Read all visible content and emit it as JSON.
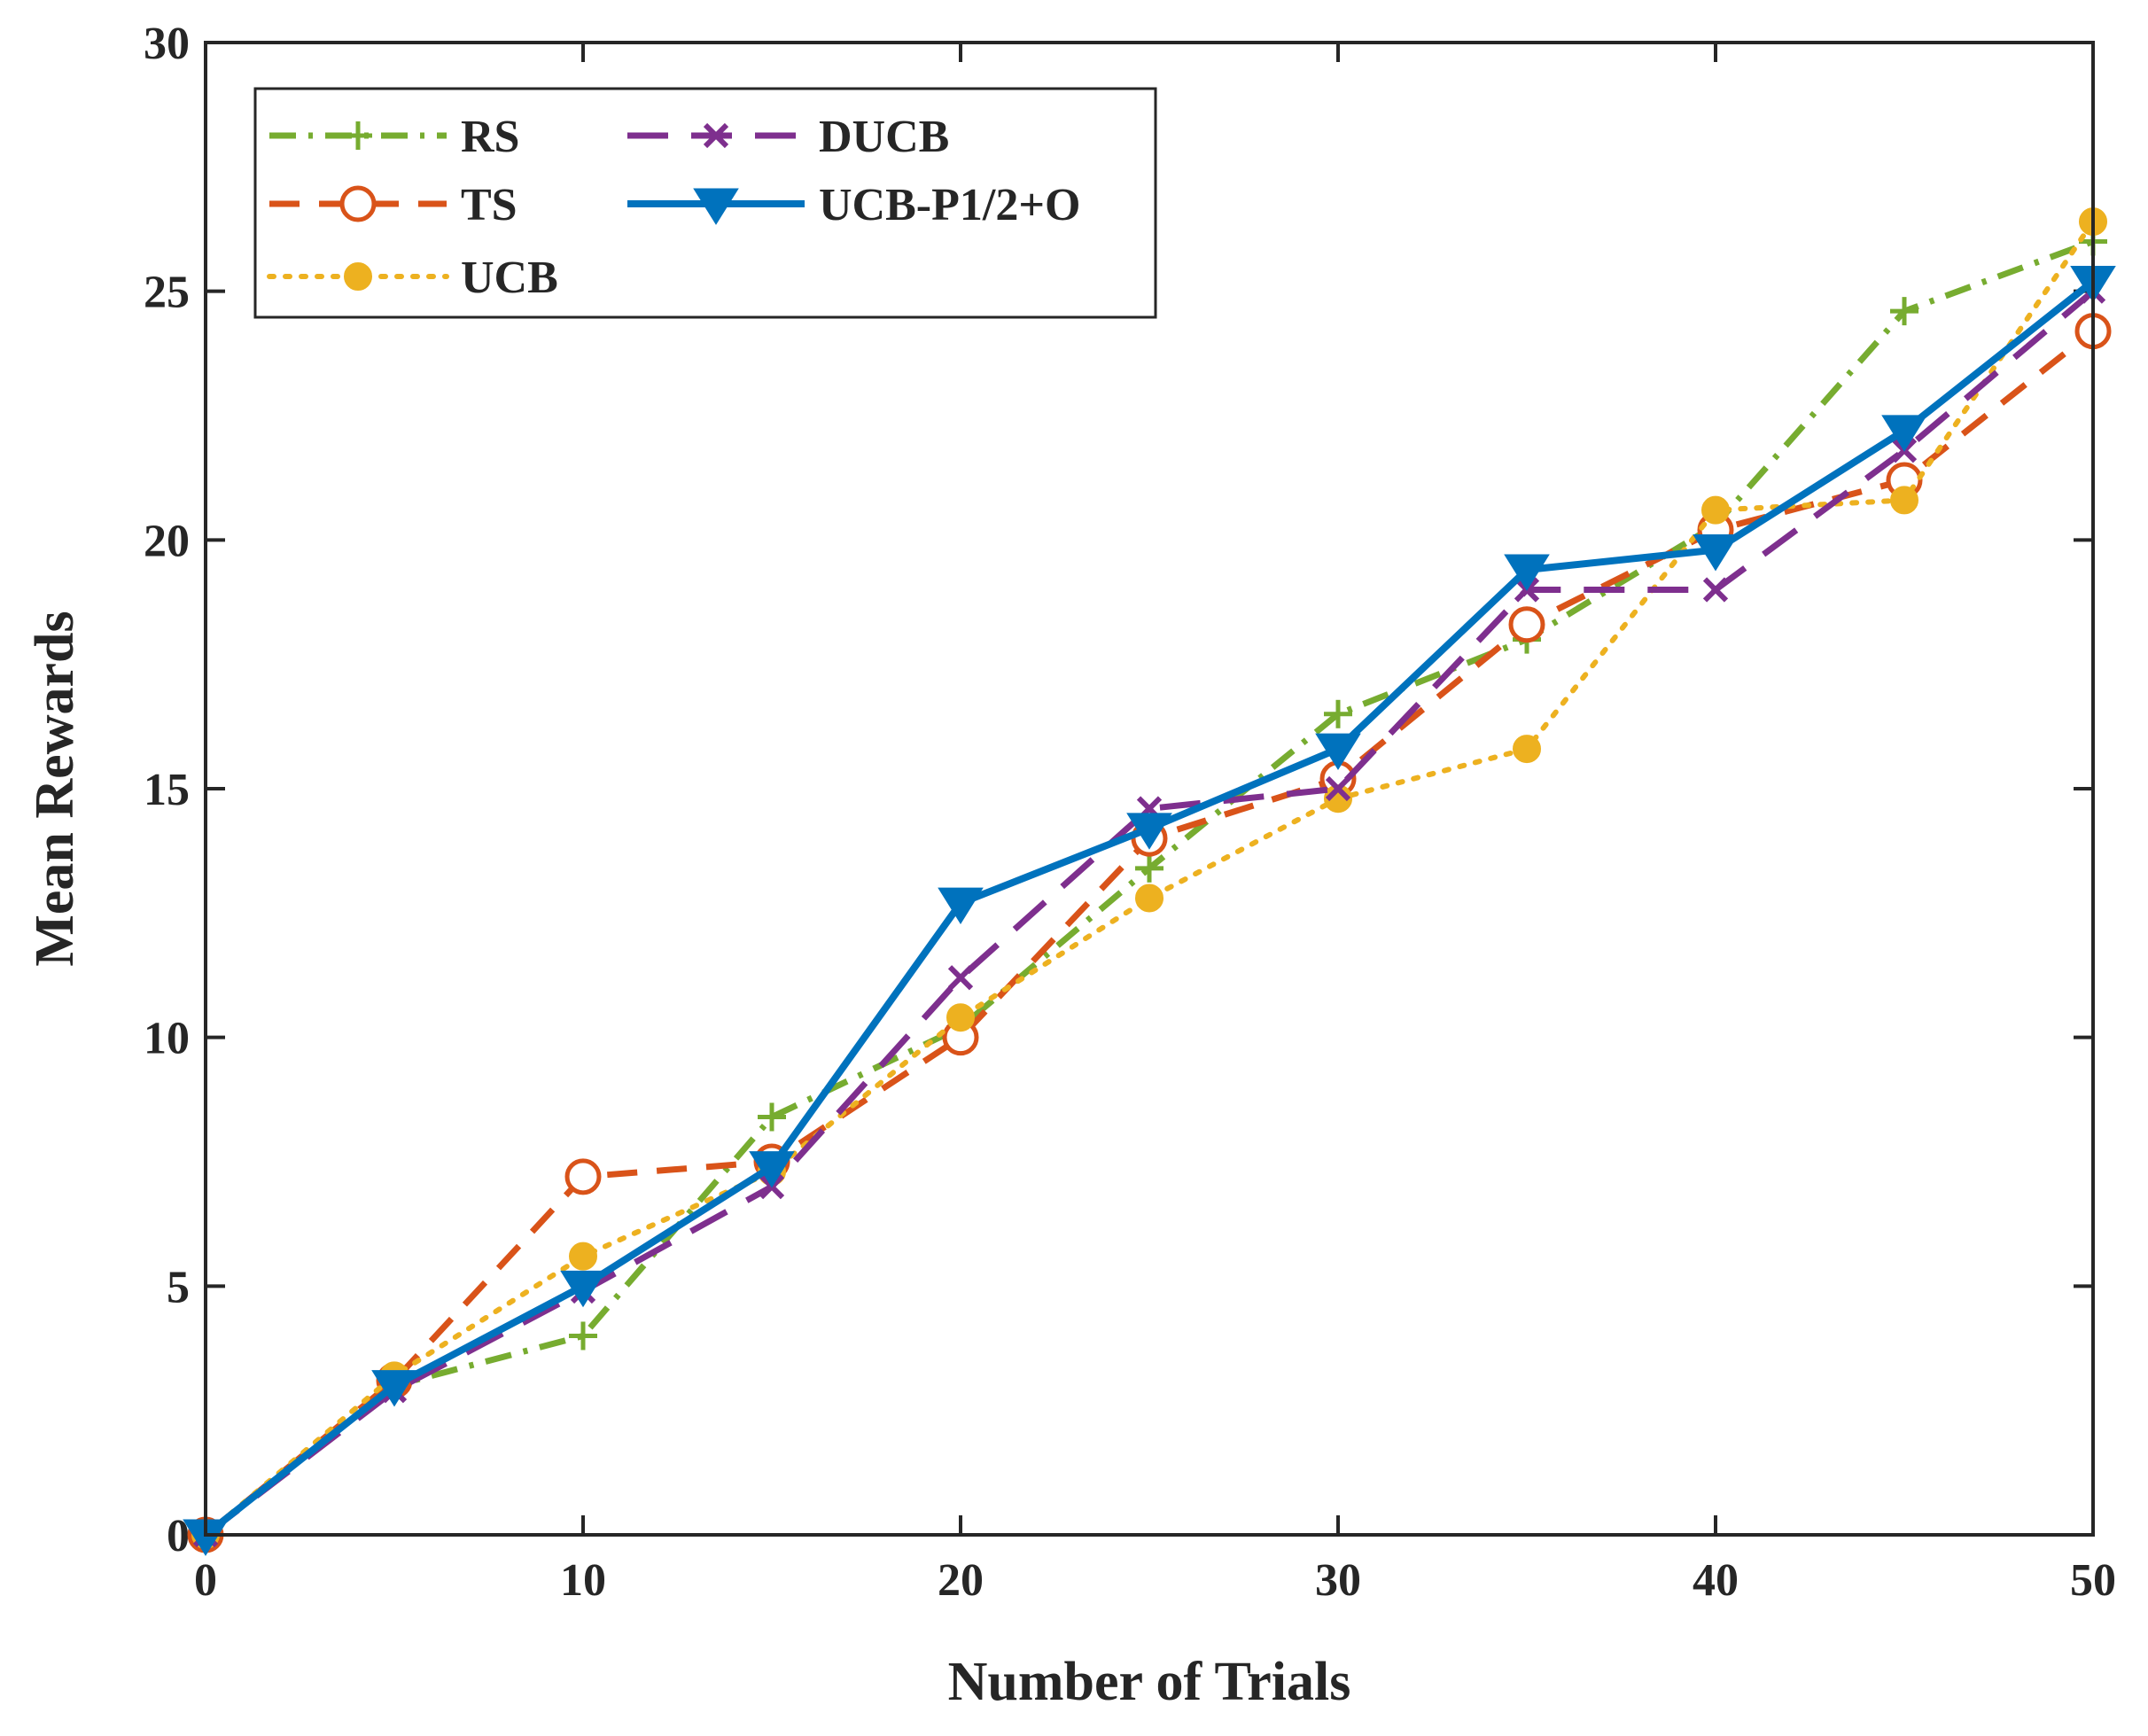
{
  "chart_data": {
    "type": "line",
    "title": "",
    "xlabel": "Number of Trials",
    "ylabel": "Mean Rewards",
    "xlim": [
      0,
      50
    ],
    "ylim": [
      0,
      30
    ],
    "x_ticks": [
      "0",
      "10",
      "20",
      "30",
      "40",
      "50"
    ],
    "y_ticks": [
      "0",
      "5",
      "10",
      "15",
      "20",
      "25",
      "30"
    ],
    "grid": false,
    "legend_position": "top-left",
    "x": [
      0,
      5,
      10,
      15,
      20,
      25,
      30,
      35,
      40,
      45,
      50
    ],
    "series": [
      {
        "name": "RS",
        "color": "#77AC30",
        "style": "dashdot",
        "marker": "plus",
        "values": [
          0,
          3.0,
          4.0,
          8.4,
          10.2,
          13.4,
          16.5,
          18.0,
          20.3,
          24.6,
          26.0
        ]
      },
      {
        "name": "TS",
        "color": "#D95319",
        "style": "dashed",
        "marker": "circle",
        "values": [
          0,
          3.1,
          7.2,
          7.5,
          10.0,
          14.0,
          15.2,
          18.3,
          20.2,
          21.2,
          24.2
        ]
      },
      {
        "name": "UCB",
        "color": "#EDB120",
        "style": "dotted",
        "marker": "filled-circle",
        "values": [
          0,
          3.2,
          5.6,
          7.3,
          10.4,
          12.8,
          14.8,
          15.8,
          20.6,
          20.8,
          26.4
        ]
      },
      {
        "name": "DUCB",
        "color": "#7E2F8E",
        "style": "longdash",
        "marker": "cross",
        "values": [
          0,
          2.9,
          4.9,
          7.0,
          11.2,
          14.6,
          15.0,
          19.0,
          19.0,
          21.8,
          25.0
        ]
      },
      {
        "name": "UCB-P1/2+O",
        "color": "#0072BD",
        "style": "solid",
        "marker": "triangle-down",
        "values": [
          0,
          3.0,
          5.0,
          7.4,
          12.7,
          14.2,
          15.8,
          19.4,
          19.8,
          22.2,
          25.2
        ]
      }
    ]
  }
}
